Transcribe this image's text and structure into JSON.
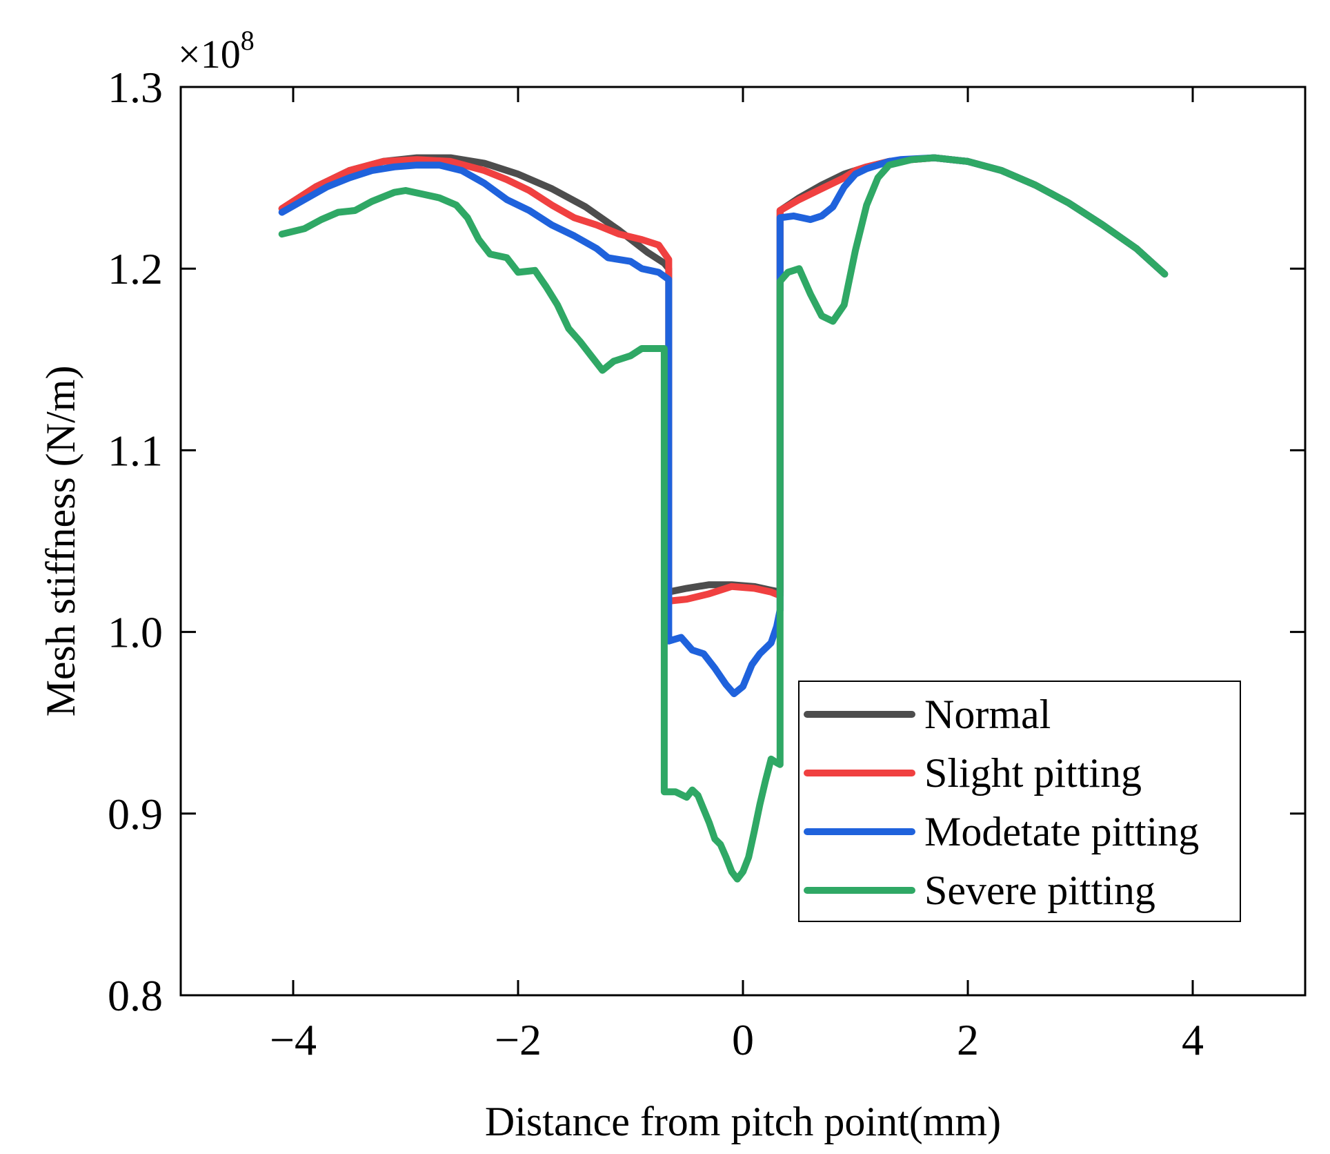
{
  "chart_data": {
    "type": "line",
    "title": "",
    "xlabel": "Distance from  pitch point(mm)",
    "ylabel": "Mesh stiffness (N/m)",
    "y_multiplier": "×10",
    "y_multiplier_exponent": "8",
    "xlim": [
      -5,
      5
    ],
    "ylim": [
      0.8,
      1.3
    ],
    "xticks": [
      -4,
      -2,
      0,
      2,
      4
    ],
    "xtick_labels": [
      "−4",
      "−2",
      "0",
      "2",
      "4"
    ],
    "yticks": [
      0.8,
      0.9,
      1.0,
      1.1,
      1.2,
      1.3
    ],
    "ytick_labels": [
      "0.8",
      "0.9",
      "1.0",
      "1.1",
      "1.2",
      "1.3"
    ],
    "grid": false,
    "legend_position": "bottom-right",
    "series": [
      {
        "name": "Normal",
        "color": "#4d4d4d",
        "points": [
          [
            -4.1,
            1.233
          ],
          [
            -3.8,
            1.245
          ],
          [
            -3.5,
            1.254
          ],
          [
            -3.2,
            1.259
          ],
          [
            -2.9,
            1.261
          ],
          [
            -2.6,
            1.261
          ],
          [
            -2.3,
            1.258
          ],
          [
            -2.0,
            1.252
          ],
          [
            -1.7,
            1.244
          ],
          [
            -1.4,
            1.234
          ],
          [
            -1.1,
            1.221
          ],
          [
            -0.85,
            1.209
          ],
          [
            -0.7,
            1.203
          ],
          [
            -0.66,
            1.2
          ],
          [
            -0.66,
            1.022
          ],
          [
            -0.5,
            1.024
          ],
          [
            -0.3,
            1.026
          ],
          [
            -0.1,
            1.026
          ],
          [
            0.1,
            1.025
          ],
          [
            0.25,
            1.023
          ],
          [
            0.33,
            1.022
          ],
          [
            0.33,
            1.232
          ],
          [
            0.5,
            1.239
          ],
          [
            0.7,
            1.246
          ],
          [
            0.9,
            1.252
          ],
          [
            1.1,
            1.256
          ],
          [
            1.3,
            1.259
          ],
          [
            1.5,
            1.26
          ],
          [
            1.7,
            1.261
          ],
          [
            2.0,
            1.259
          ],
          [
            2.3,
            1.254
          ],
          [
            2.6,
            1.246
          ],
          [
            2.9,
            1.236
          ],
          [
            3.2,
            1.224
          ],
          [
            3.5,
            1.211
          ],
          [
            3.75,
            1.197
          ]
        ]
      },
      {
        "name": "Slight pitting",
        "color": "#f04040",
        "points": [
          [
            -4.1,
            1.233
          ],
          [
            -3.8,
            1.245
          ],
          [
            -3.5,
            1.254
          ],
          [
            -3.2,
            1.259
          ],
          [
            -2.9,
            1.26
          ],
          [
            -2.6,
            1.259
          ],
          [
            -2.3,
            1.254
          ],
          [
            -2.1,
            1.249
          ],
          [
            -1.9,
            1.243
          ],
          [
            -1.7,
            1.235
          ],
          [
            -1.5,
            1.228
          ],
          [
            -1.3,
            1.224
          ],
          [
            -1.1,
            1.219
          ],
          [
            -0.9,
            1.216
          ],
          [
            -0.75,
            1.213
          ],
          [
            -0.66,
            1.205
          ],
          [
            -0.66,
            1.017
          ],
          [
            -0.5,
            1.018
          ],
          [
            -0.3,
            1.021
          ],
          [
            -0.1,
            1.025
          ],
          [
            0.1,
            1.024
          ],
          [
            0.25,
            1.022
          ],
          [
            0.33,
            1.02
          ],
          [
            0.33,
            1.232
          ],
          [
            0.5,
            1.238
          ],
          [
            0.7,
            1.244
          ],
          [
            0.9,
            1.25
          ],
          [
            1.0,
            1.254
          ],
          [
            1.1,
            1.256
          ],
          [
            1.3,
            1.259
          ],
          [
            1.5,
            1.26
          ],
          [
            1.7,
            1.261
          ],
          [
            2.0,
            1.259
          ],
          [
            2.3,
            1.254
          ],
          [
            2.6,
            1.246
          ],
          [
            2.9,
            1.236
          ],
          [
            3.2,
            1.224
          ],
          [
            3.5,
            1.211
          ],
          [
            3.75,
            1.197
          ]
        ]
      },
      {
        "name": "Modetate pitting",
        "color": "#1f62dc",
        "points": [
          [
            -4.1,
            1.231
          ],
          [
            -3.9,
            1.238
          ],
          [
            -3.7,
            1.245
          ],
          [
            -3.5,
            1.25
          ],
          [
            -3.3,
            1.254
          ],
          [
            -3.1,
            1.256
          ],
          [
            -2.9,
            1.257
          ],
          [
            -2.7,
            1.257
          ],
          [
            -2.5,
            1.254
          ],
          [
            -2.3,
            1.247
          ],
          [
            -2.1,
            1.238
          ],
          [
            -1.9,
            1.232
          ],
          [
            -1.7,
            1.224
          ],
          [
            -1.5,
            1.218
          ],
          [
            -1.3,
            1.211
          ],
          [
            -1.2,
            1.206
          ],
          [
            -1.0,
            1.204
          ],
          [
            -0.9,
            1.2
          ],
          [
            -0.75,
            1.198
          ],
          [
            -0.66,
            1.194
          ],
          [
            -0.66,
            0.995
          ],
          [
            -0.55,
            0.997
          ],
          [
            -0.45,
            0.99
          ],
          [
            -0.35,
            0.988
          ],
          [
            -0.25,
            0.98
          ],
          [
            -0.15,
            0.971
          ],
          [
            -0.08,
            0.966
          ],
          [
            0.0,
            0.97
          ],
          [
            0.08,
            0.982
          ],
          [
            0.15,
            0.988
          ],
          [
            0.25,
            0.994
          ],
          [
            0.3,
            1.003
          ],
          [
            0.33,
            1.012
          ],
          [
            0.33,
            1.228
          ],
          [
            0.45,
            1.229
          ],
          [
            0.6,
            1.227
          ],
          [
            0.7,
            1.229
          ],
          [
            0.8,
            1.234
          ],
          [
            0.9,
            1.245
          ],
          [
            1.0,
            1.252
          ],
          [
            1.1,
            1.255
          ],
          [
            1.2,
            1.257
          ],
          [
            1.3,
            1.259
          ],
          [
            1.4,
            1.26
          ],
          [
            1.7,
            1.261
          ],
          [
            2.0,
            1.259
          ],
          [
            2.3,
            1.254
          ],
          [
            2.6,
            1.246
          ],
          [
            2.9,
            1.236
          ],
          [
            3.2,
            1.224
          ],
          [
            3.5,
            1.211
          ],
          [
            3.75,
            1.197
          ]
        ]
      },
      {
        "name": "Severe pitting",
        "color": "#2fa865",
        "points": [
          [
            -4.1,
            1.219
          ],
          [
            -3.9,
            1.222
          ],
          [
            -3.75,
            1.227
          ],
          [
            -3.6,
            1.231
          ],
          [
            -3.45,
            1.232
          ],
          [
            -3.3,
            1.237
          ],
          [
            -3.1,
            1.242
          ],
          [
            -3.0,
            1.243
          ],
          [
            -2.85,
            1.241
          ],
          [
            -2.7,
            1.239
          ],
          [
            -2.55,
            1.235
          ],
          [
            -2.45,
            1.228
          ],
          [
            -2.35,
            1.216
          ],
          [
            -2.25,
            1.208
          ],
          [
            -2.1,
            1.206
          ],
          [
            -2.0,
            1.198
          ],
          [
            -1.85,
            1.199
          ],
          [
            -1.75,
            1.19
          ],
          [
            -1.65,
            1.18
          ],
          [
            -1.55,
            1.167
          ],
          [
            -1.45,
            1.16
          ],
          [
            -1.35,
            1.152
          ],
          [
            -1.25,
            1.144
          ],
          [
            -1.15,
            1.149
          ],
          [
            -1.0,
            1.152
          ],
          [
            -0.9,
            1.156
          ],
          [
            -0.75,
            1.156
          ],
          [
            -0.7,
            1.156
          ],
          [
            -0.7,
            0.912
          ],
          [
            -0.6,
            0.912
          ],
          [
            -0.5,
            0.909
          ],
          [
            -0.45,
            0.913
          ],
          [
            -0.4,
            0.91
          ],
          [
            -0.3,
            0.895
          ],
          [
            -0.25,
            0.886
          ],
          [
            -0.2,
            0.883
          ],
          [
            -0.15,
            0.876
          ],
          [
            -0.1,
            0.868
          ],
          [
            -0.05,
            0.864
          ],
          [
            0.0,
            0.868
          ],
          [
            0.05,
            0.876
          ],
          [
            0.1,
            0.89
          ],
          [
            0.15,
            0.905
          ],
          [
            0.2,
            0.918
          ],
          [
            0.25,
            0.93
          ],
          [
            0.3,
            0.928
          ],
          [
            0.33,
            0.927
          ],
          [
            0.33,
            1.193
          ],
          [
            0.4,
            1.198
          ],
          [
            0.5,
            1.2
          ],
          [
            0.6,
            1.186
          ],
          [
            0.7,
            1.174
          ],
          [
            0.8,
            1.171
          ],
          [
            0.9,
            1.18
          ],
          [
            1.0,
            1.21
          ],
          [
            1.1,
            1.235
          ],
          [
            1.2,
            1.25
          ],
          [
            1.3,
            1.257
          ],
          [
            1.5,
            1.26
          ],
          [
            1.7,
            1.261
          ],
          [
            2.0,
            1.259
          ],
          [
            2.3,
            1.254
          ],
          [
            2.6,
            1.246
          ],
          [
            2.9,
            1.236
          ],
          [
            3.2,
            1.224
          ],
          [
            3.5,
            1.211
          ],
          [
            3.75,
            1.197
          ]
        ]
      }
    ]
  }
}
